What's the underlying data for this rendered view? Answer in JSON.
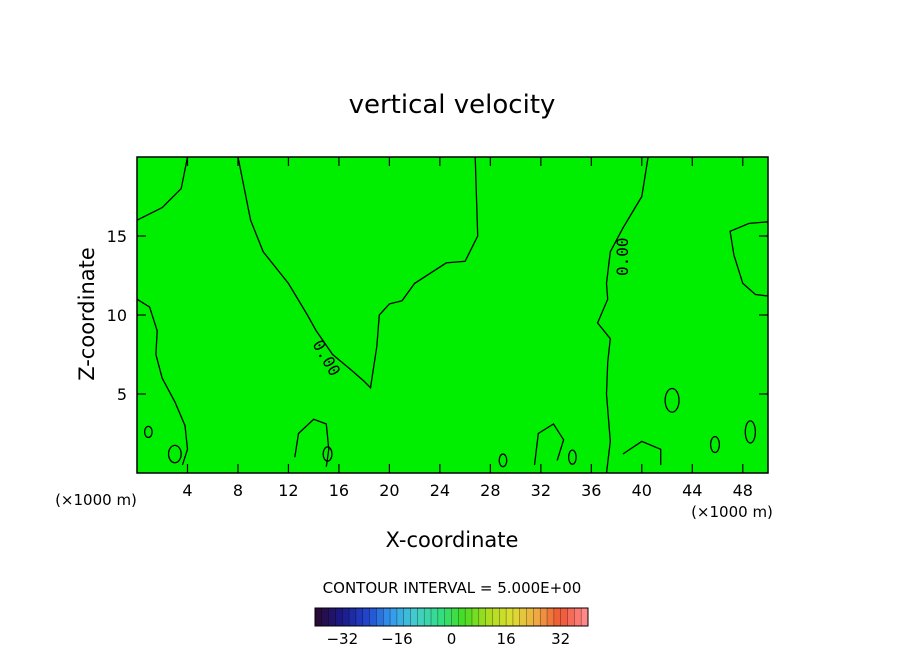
{
  "chart_data": {
    "type": "contour",
    "title": "vertical velocity",
    "xlabel": "X-coordinate",
    "ylabel": "Z-coordinate",
    "x_unit": "(×1000 m)",
    "z_unit": "(×1000 m)",
    "xlim": [
      0,
      50
    ],
    "ylim": [
      0,
      20
    ],
    "x_ticks": [
      4,
      8,
      12,
      16,
      20,
      24,
      28,
      32,
      36,
      40,
      44,
      48
    ],
    "y_ticks": [
      5,
      10,
      15
    ],
    "contour_label": "0.00",
    "contour_interval_text": "CONTOUR INTERVAL = 5.000E+00",
    "field_color": "#00ee00",
    "colorbar": {
      "min": -40,
      "max": 40,
      "ticks": [
        -32,
        -16,
        0,
        16,
        32
      ],
      "colors": [
        "#2a0a3a",
        "#1a1a8a",
        "#2244cc",
        "#3399ee",
        "#44cccc",
        "#33dd88",
        "#44dd22",
        "#aadd22",
        "#dddd33",
        "#eeaa44",
        "#ee5533",
        "#ff8888"
      ]
    },
    "zero_contours": [
      {
        "name": "contour-left-upper",
        "points": [
          [
            0,
            16
          ],
          [
            2,
            16.8
          ],
          [
            3.5,
            18
          ],
          [
            4,
            20
          ]
        ]
      },
      {
        "name": "contour-center-v",
        "points": [
          [
            8,
            20
          ],
          [
            9,
            16
          ],
          [
            10,
            14
          ],
          [
            12,
            12
          ],
          [
            13.5,
            10
          ],
          [
            14.2,
            9
          ],
          [
            15.5,
            7.5
          ],
          [
            17,
            6.5
          ],
          [
            18,
            5.8
          ],
          [
            18.5,
            5.4
          ],
          [
            19,
            8
          ],
          [
            19.2,
            10
          ],
          [
            20,
            10.7
          ],
          [
            21,
            10.9
          ],
          [
            22,
            12
          ],
          [
            24.5,
            13.3
          ],
          [
            26,
            13.4
          ],
          [
            27,
            15
          ],
          [
            26.8,
            20
          ]
        ]
      },
      {
        "name": "contour-right-center",
        "points": [
          [
            40.5,
            20
          ],
          [
            40,
            17.5
          ],
          [
            38.5,
            15.5
          ],
          [
            37.5,
            14
          ],
          [
            37.2,
            12
          ],
          [
            37.3,
            11
          ],
          [
            36.5,
            9.5
          ],
          [
            37.5,
            8.5
          ],
          [
            37.3,
            7
          ],
          [
            37.2,
            5
          ],
          [
            37.5,
            2
          ],
          [
            37.2,
            0
          ]
        ]
      },
      {
        "name": "contour-left-lower",
        "points": [
          [
            0,
            11
          ],
          [
            1,
            10.5
          ],
          [
            1.6,
            9
          ],
          [
            1.5,
            7.5
          ],
          [
            2,
            6
          ],
          [
            3,
            4.5
          ],
          [
            3.8,
            3
          ],
          [
            4,
            1.5
          ],
          [
            3.6,
            0.5
          ]
        ]
      },
      {
        "name": "contour-right-upper",
        "points": [
          [
            50,
            15.9
          ],
          [
            48.5,
            15.8
          ],
          [
            47,
            15.3
          ],
          [
            47.3,
            13.8
          ],
          [
            48,
            12
          ],
          [
            49,
            11.3
          ],
          [
            50,
            11.2
          ]
        ]
      },
      {
        "name": "contour-blob-a",
        "points": [
          [
            12.5,
            1
          ],
          [
            12.8,
            2.5
          ],
          [
            14,
            3.4
          ],
          [
            15,
            3.1
          ],
          [
            15.2,
            1.5
          ],
          [
            15,
            0.4
          ]
        ]
      },
      {
        "name": "contour-blob-b",
        "points": [
          [
            31.5,
            0.5
          ],
          [
            31.8,
            2.5
          ],
          [
            33,
            3.1
          ],
          [
            33.8,
            2.1
          ],
          [
            33.3,
            0.8
          ]
        ]
      },
      {
        "name": "contour-blob-c",
        "points": [
          [
            38.5,
            1.2
          ],
          [
            40,
            2
          ],
          [
            41.5,
            1.5
          ],
          [
            41.5,
            0.5
          ]
        ]
      }
    ],
    "closed_contours": [
      {
        "name": "contour-loop-1",
        "cx": 42.4,
        "cz": 4.6,
        "rx": 0.55,
        "rz": 0.75
      },
      {
        "name": "contour-loop-2",
        "cx": 0.9,
        "cz": 2.6,
        "rx": 0.3,
        "rz": 0.35
      },
      {
        "name": "contour-loop-3",
        "cx": 3,
        "cz": 1.2,
        "rx": 0.5,
        "rz": 0.55
      },
      {
        "name": "contour-loop-4",
        "cx": 15.1,
        "cz": 1.2,
        "rx": 0.35,
        "rz": 0.45
      },
      {
        "name": "contour-loop-5",
        "cx": 48.6,
        "cz": 2.6,
        "rx": 0.4,
        "rz": 0.7
      },
      {
        "name": "contour-loop-6",
        "cx": 45.8,
        "cz": 1.8,
        "rx": 0.35,
        "rz": 0.5
      },
      {
        "name": "contour-loop-7",
        "cx": 34.5,
        "cz": 1,
        "rx": 0.3,
        "rz": 0.45
      },
      {
        "name": "contour-loop-8",
        "cx": 29,
        "cz": 0.8,
        "rx": 0.3,
        "rz": 0.4
      }
    ]
  }
}
